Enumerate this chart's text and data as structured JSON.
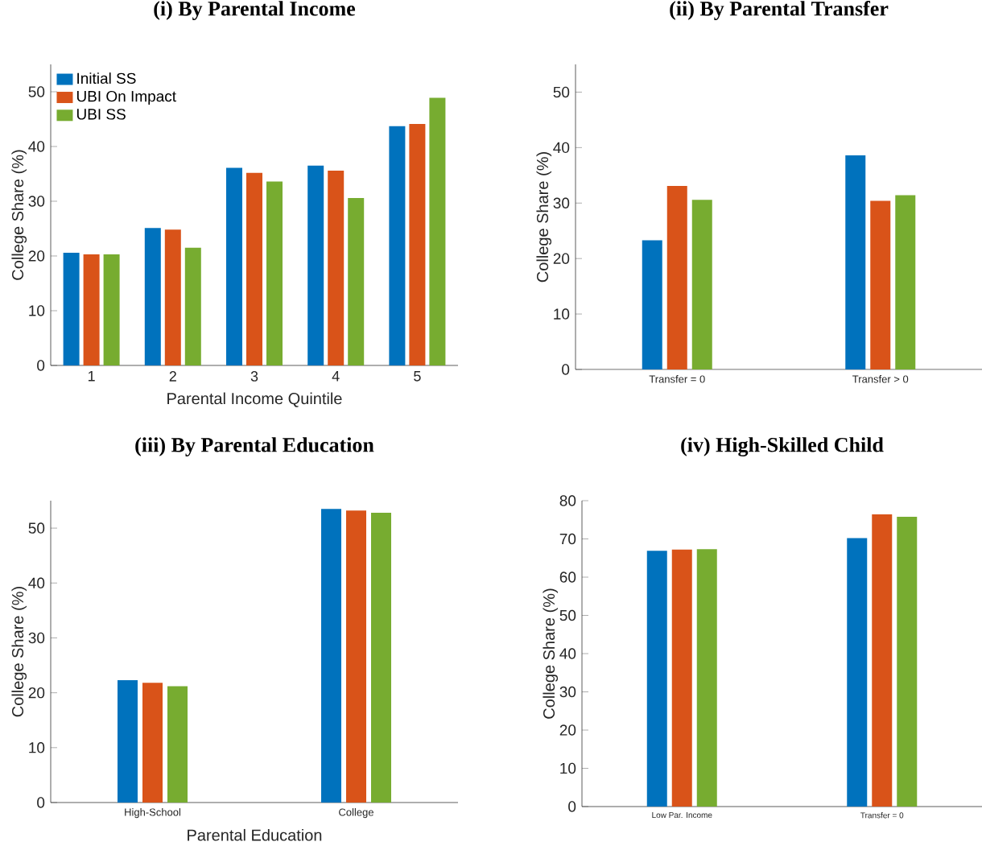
{
  "chart_data": [
    {
      "type": "bar",
      "title": "(i) By Parental Income",
      "xlabel": "Parental Income Quintile",
      "ylabel": "College Share (%)",
      "categories": [
        "1",
        "2",
        "3",
        "4",
        "5"
      ],
      "ylim": [
        0,
        55
      ],
      "yticks": [
        0,
        10,
        20,
        30,
        40,
        50
      ],
      "legend": "top left",
      "series": [
        {
          "name": "Initial SS",
          "color": "#0072bd",
          "values": [
            20.6,
            25.1,
            36.1,
            36.5,
            43.7
          ]
        },
        {
          "name": "UBI On Impact",
          "color": "#d95319",
          "values": [
            20.3,
            24.8,
            35.2,
            35.6,
            44.1
          ]
        },
        {
          "name": "UBI SS",
          "color": "#77ac30",
          "values": [
            20.3,
            21.5,
            33.6,
            30.6,
            48.9
          ]
        }
      ]
    },
    {
      "type": "bar",
      "title": "(ii) By Parental Transfer",
      "ylabel": "College Share (%)",
      "categories": [
        "Transfer = 0",
        "Transfer > 0"
      ],
      "ylim": [
        0,
        55
      ],
      "yticks": [
        0,
        10,
        20,
        30,
        40,
        50
      ],
      "series": [
        {
          "color": "#0072bd",
          "values": [
            23.3,
            38.6
          ]
        },
        {
          "color": "#d95319",
          "values": [
            33.1,
            30.4
          ]
        },
        {
          "color": "#77ac30",
          "values": [
            30.6,
            31.4
          ]
        }
      ]
    },
    {
      "type": "bar",
      "title": "(iii) By Parental Education",
      "xlabel": "Parental Education",
      "ylabel": "College Share (%)",
      "categories": [
        "High-School",
        "College"
      ],
      "ylim": [
        0,
        55
      ],
      "yticks": [
        0,
        10,
        20,
        30,
        40,
        50
      ],
      "series": [
        {
          "color": "#0072bd",
          "values": [
            22.3,
            53.5
          ]
        },
        {
          "color": "#d95319",
          "values": [
            21.8,
            53.2
          ]
        },
        {
          "color": "#77ac30",
          "values": [
            21.2,
            52.8
          ]
        }
      ]
    },
    {
      "type": "bar",
      "title": "(iv) High-Skilled Child",
      "ylabel": "College Share (%)",
      "categories": [
        "Low Par. Income",
        "Transfer = 0"
      ],
      "ylim": [
        0,
        80
      ],
      "yticks": [
        0,
        10,
        20,
        30,
        40,
        50,
        60,
        70,
        80
      ],
      "series": [
        {
          "color": "#0072bd",
          "values": [
            66.9,
            70.2
          ]
        },
        {
          "color": "#d95319",
          "values": [
            67.2,
            76.4
          ]
        },
        {
          "color": "#77ac30",
          "values": [
            67.3,
            75.8
          ]
        }
      ]
    }
  ]
}
